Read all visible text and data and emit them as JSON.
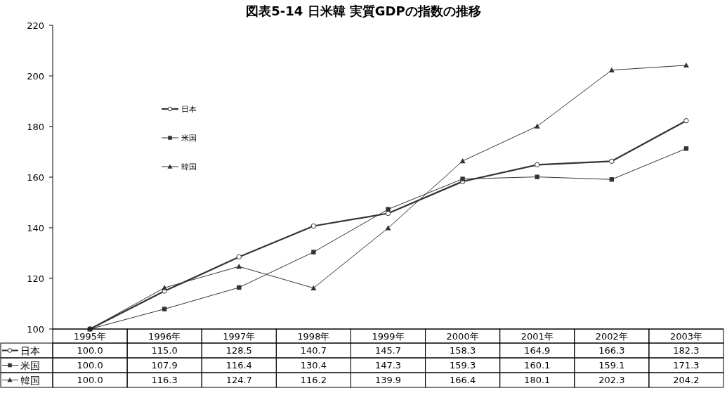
{
  "chart_data": {
    "type": "line",
    "title": "図表5-14 日米韓 実質GDPの指数の推移",
    "categories": [
      "1995年",
      "1996年",
      "1997年",
      "1998年",
      "1999年",
      "2000年",
      "2001年",
      "2002年",
      "2003年"
    ],
    "series": [
      {
        "name": "日本",
        "color": "#333333",
        "marker": "circle",
        "values": [
          100.0,
          115.0,
          128.5,
          140.7,
          145.7,
          158.3,
          164.9,
          166.3,
          182.3
        ],
        "value_labels": [
          "100.0",
          "115.0",
          "128.5",
          "140.7",
          "145.7",
          "158.3",
          "164.9",
          "166.3",
          "182.3"
        ]
      },
      {
        "name": "米国",
        "color": "#333333",
        "marker": "square",
        "values": [
          100.0,
          107.9,
          116.4,
          130.4,
          147.3,
          159.3,
          160.1,
          159.1,
          171.3
        ],
        "value_labels": [
          "100.0",
          "107.9",
          "116.4",
          "130.4",
          "147.3",
          "159.3",
          "160.1",
          "159.1",
          "171.3"
        ]
      },
      {
        "name": "韓国",
        "color": "#333333",
        "marker": "triangle",
        "values": [
          100.0,
          116.3,
          124.7,
          116.2,
          139.9,
          166.4,
          180.1,
          202.3,
          204.2
        ],
        "value_labels": [
          "100.0",
          "116.3",
          "124.7",
          "116.2",
          "139.9",
          "166.4",
          "180.1",
          "202.3",
          "204.2"
        ]
      }
    ],
    "ylim": [
      100,
      220
    ],
    "yticks": [
      100,
      120,
      140,
      160,
      180,
      200,
      220
    ],
    "grid": false,
    "legend": "top left"
  }
}
